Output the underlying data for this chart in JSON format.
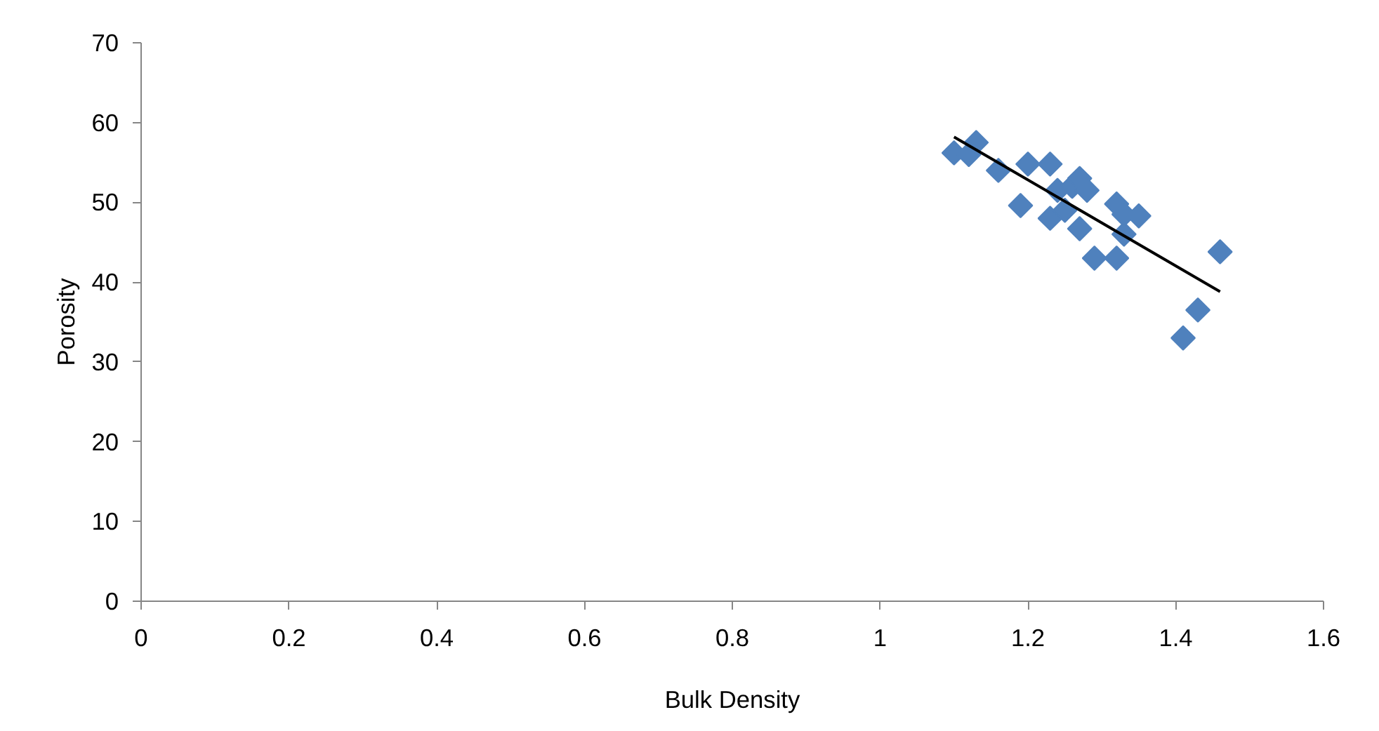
{
  "chart_data": {
    "type": "scatter",
    "xlabel": "Bulk Density",
    "ylabel": "Porosity",
    "xlim": [
      0,
      1.6
    ],
    "ylim": [
      0,
      70
    ],
    "xticks": [
      0,
      0.2,
      0.4,
      0.6,
      0.8,
      1,
      1.2,
      1.4,
      1.6
    ],
    "yticks": [
      0,
      10,
      20,
      30,
      40,
      50,
      60,
      70
    ],
    "grid": false,
    "series": [
      {
        "marker": "diamond",
        "color": "#4f81bd",
        "x": [
          1.1,
          1.12,
          1.13,
          1.16,
          1.19,
          1.2,
          1.23,
          1.23,
          1.24,
          1.25,
          1.26,
          1.27,
          1.27,
          1.28,
          1.29,
          1.32,
          1.32,
          1.33,
          1.33,
          1.34,
          1.35,
          1.41,
          1.43,
          1.46
        ],
        "values": [
          56.2,
          56,
          57.5,
          54,
          49.6,
          54.8,
          54.8,
          48,
          51.5,
          49,
          52,
          53,
          46.7,
          51.5,
          43,
          49.8,
          43,
          46,
          48.5,
          null,
          48.3,
          33,
          36.5,
          43.8
        ]
      },
      {
        "type": "line",
        "marker": "none",
        "color": "#000000",
        "x": [
          1.1,
          1.46
        ],
        "values": [
          58.2,
          38.8
        ]
      }
    ]
  }
}
